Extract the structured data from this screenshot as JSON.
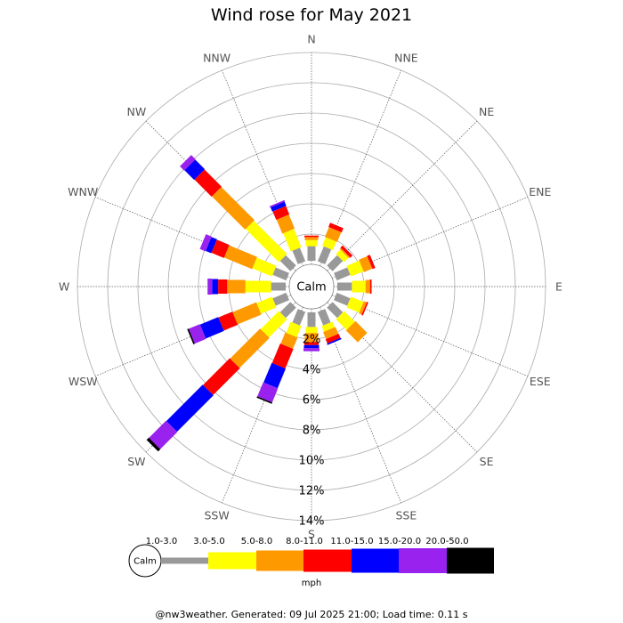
{
  "title": "Wind rose for May 2021",
  "footer": "@nw3weather. Generated: 09 Jul 2025 21:00; Load time: 0.11 s",
  "chart_data": {
    "type": "wind-rose",
    "title": "Wind rose for May 2021",
    "directions": [
      "N",
      "NNE",
      "NE",
      "ENE",
      "E",
      "ESE",
      "SE",
      "SSE",
      "S",
      "SSW",
      "SW",
      "WSW",
      "W",
      "WNW",
      "NW",
      "NNW"
    ],
    "radial_unit": "%",
    "radial_ticks": [
      2,
      4,
      6,
      8,
      10,
      12,
      14
    ],
    "radial_tick_labels": [
      "2%",
      "4%",
      "6%",
      "8%",
      "10%",
      "12%",
      "14%"
    ],
    "radial_max": 14,
    "center_label": "Calm",
    "speed_unit": "mph",
    "speed_bins": [
      {
        "label": "1.0-3.0",
        "color": "#999999"
      },
      {
        "label": "3.0-5.0",
        "color": "#ffff00"
      },
      {
        "label": "5.0-8.0",
        "color": "#ff9900"
      },
      {
        "label": "8.0-11.0",
        "color": "#ff0000"
      },
      {
        "label": "11.0-15.0",
        "color": "#0000ff"
      },
      {
        "label": "15.0-20.0",
        "color": "#9922ee"
      },
      {
        "label": "20.0-50.0",
        "color": "#000000"
      }
    ],
    "series": [
      {
        "direction": "N",
        "cumulative": [
          1.2,
          1.6,
          1.8,
          1.9,
          1.9,
          1.9,
          1.9
        ]
      },
      {
        "direction": "NNE",
        "cumulative": [
          1.3,
          1.9,
          2.6,
          2.9,
          2.9,
          2.9,
          2.9
        ]
      },
      {
        "direction": "NE",
        "cumulative": [
          1.2,
          1.6,
          1.7,
          1.9,
          1.9,
          1.9,
          1.9
        ]
      },
      {
        "direction": "ENE",
        "cumulative": [
          1.2,
          2.1,
          2.7,
          2.9,
          2.9,
          2.9,
          2.9
        ]
      },
      {
        "direction": "E",
        "cumulative": [
          1.2,
          2.1,
          2.4,
          2.5,
          2.5,
          2.5,
          2.5
        ]
      },
      {
        "direction": "ESE",
        "cumulative": [
          1.2,
          2.1,
          2.3,
          2.4,
          2.4,
          2.4,
          2.4
        ]
      },
      {
        "direction": "SE",
        "cumulative": [
          1.2,
          2.2,
          3.3,
          3.3,
          3.3,
          3.3,
          3.3
        ]
      },
      {
        "direction": "SSE",
        "cumulative": [
          1.2,
          1.6,
          2.1,
          2.4,
          2.5,
          2.5,
          2.5
        ]
      },
      {
        "direction": "S",
        "cumulative": [
          1.2,
          1.6,
          2.2,
          2.4,
          2.6,
          2.8,
          2.8
        ]
      },
      {
        "direction": "SSW",
        "cumulative": [
          1.2,
          2.0,
          2.8,
          4.2,
          5.6,
          6.6,
          6.7
        ]
      },
      {
        "direction": "SW",
        "cumulative": [
          1.2,
          2.9,
          5.7,
          8.2,
          11.6,
          13.2,
          13.4
        ]
      },
      {
        "direction": "WSW",
        "cumulative": [
          1.2,
          2.3,
          4.0,
          5.0,
          6.3,
          7.1,
          7.2
        ]
      },
      {
        "direction": "W",
        "cumulative": [
          1.2,
          2.9,
          4.1,
          4.7,
          5.1,
          5.4,
          5.4
        ]
      },
      {
        "direction": "WNW",
        "cumulative": [
          1.2,
          2.6,
          4.6,
          5.5,
          5.9,
          6.3,
          6.3
        ]
      },
      {
        "direction": "NW",
        "cumulative": [
          1.2,
          4.3,
          7.4,
          9.0,
          9.9,
          10.3,
          10.3
        ]
      },
      {
        "direction": "NNW",
        "cumulative": [
          1.2,
          2.5,
          3.5,
          4.1,
          4.4,
          4.5,
          4.5
        ]
      }
    ]
  }
}
